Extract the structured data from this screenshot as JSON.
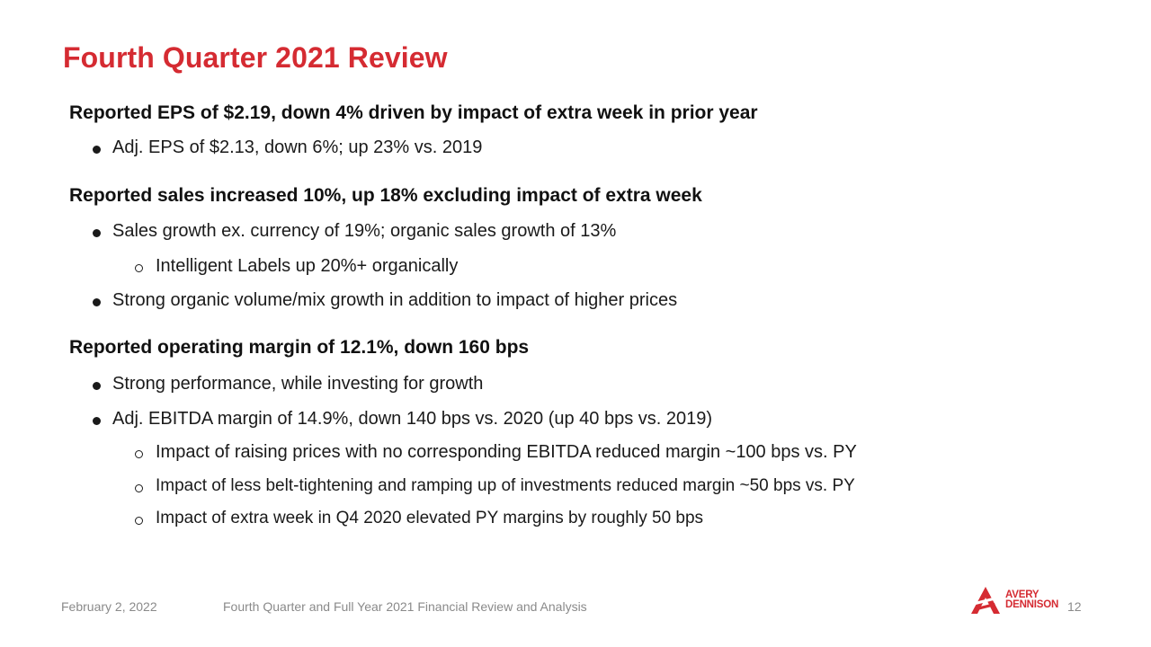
{
  "slide": {
    "title": "Fourth Quarter 2021 Review",
    "sections": [
      {
        "heading": "Reported EPS of $2.19, down 4% driven by impact of extra week in prior year",
        "bullets": [
          "Adj. EPS of $2.13, down 6%; up 23% vs. 2019"
        ]
      },
      {
        "heading": "Reported sales increased 10%, up 18% excluding impact of extra week",
        "bullets": [
          "Sales growth ex. currency of 19%; organic sales growth of 13%",
          "Strong organic volume/mix growth in addition to impact of higher prices"
        ],
        "subbullets": [
          "Intelligent Labels up 20%+ organically"
        ]
      },
      {
        "heading": "Reported operating margin of 12.1%, down 160 bps",
        "bullets": [
          "Strong performance, while investing for growth",
          "Adj. EBITDA margin of 14.9%, down 140 bps vs. 2020 (up 40 bps vs. 2019)"
        ],
        "subbullets": [
          "Impact of raising prices with no corresponding EBITDA reduced margin ~100 bps vs. PY",
          "Impact of less belt-tightening and ramping up of investments reduced margin ~50 bps vs. PY",
          "Impact of extra week in Q4 2020 elevated PY margins by roughly 50 bps"
        ]
      }
    ]
  },
  "footer": {
    "date": "February 2, 2022",
    "subtitle": "Fourth Quarter and Full Year 2021 Financial Review and Analysis",
    "page_number": "12"
  },
  "logo": {
    "line1": "AVERY",
    "line2": "DENNISON",
    "color": "#d52b32"
  },
  "colors": {
    "title": "#d52b32",
    "footer_text": "#8a8a8a"
  }
}
